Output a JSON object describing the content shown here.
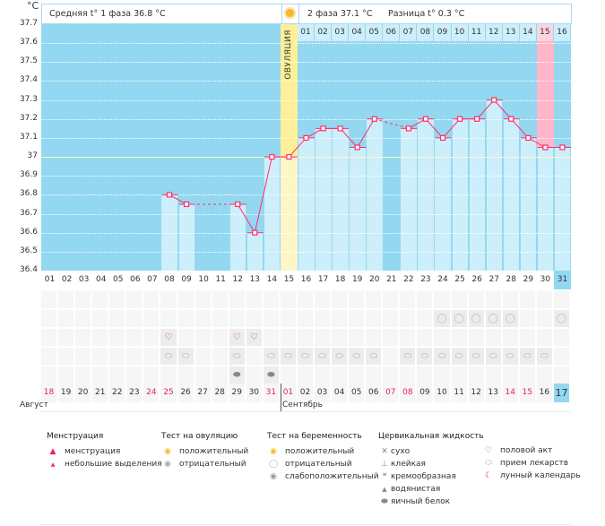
{
  "unit": "°C",
  "header": {
    "phase1": "Средняя t° 1 фаза 36.8 °C",
    "phase2": "2 фаза 37.1 °C",
    "diff": "Разница t° 0.3 °C"
  },
  "ovulation_label": "ОВУЛЯЦИЯ",
  "colors": {
    "plot_bg": "#93d8f0",
    "bar": "#cdeefb",
    "line": "#ff2d6a",
    "ovulation": "#fdf09a",
    "expected_period": "#ffb6c9",
    "weekend": "#e5245a"
  },
  "chart_data": {
    "type": "line",
    "ylim": [
      36.4,
      37.7
    ],
    "y_ticks": [
      "37.7",
      "37.6",
      "37.5",
      "37.4",
      "37.3",
      "37.2",
      "37.1",
      "37",
      "36.9",
      "36.8",
      "36.7",
      "36.6",
      "36.5",
      "36.4"
    ],
    "cycle_days": [
      "01",
      "02",
      "03",
      "04",
      "05",
      "06",
      "07",
      "08",
      "09",
      "10",
      "11",
      "12",
      "13",
      "14",
      "15",
      "16",
      "17",
      "18",
      "19",
      "20",
      "21",
      "22",
      "23",
      "24",
      "25",
      "26",
      "27",
      "28",
      "29",
      "30",
      "31"
    ],
    "temperatures": [
      null,
      null,
      null,
      null,
      null,
      null,
      null,
      36.8,
      36.75,
      null,
      null,
      36.75,
      36.6,
      37.0,
      37.0,
      37.1,
      37.15,
      37.15,
      37.05,
      37.2,
      null,
      37.15,
      37.2,
      37.1,
      37.2,
      37.2,
      37.3,
      37.2,
      37.1,
      37.05,
      37.05
    ],
    "coverline": 37.0,
    "ovulation_day": "15",
    "phase2_days": [
      "01",
      "02",
      "03",
      "04",
      "05",
      "06",
      "07",
      "08",
      "09",
      "10",
      "11",
      "12",
      "13",
      "14",
      "15",
      "16"
    ],
    "highlighted_phase2_day": "15",
    "current_cycle_day": "31"
  },
  "rows": {
    "pregnancy_test_negative": [
      "24",
      "25",
      "26",
      "27",
      "28",
      "31"
    ],
    "intercourse": [
      "08",
      "12",
      "13"
    ],
    "medication": [
      "08",
      "09",
      "12",
      "14",
      "15",
      "16",
      "17",
      "18",
      "19",
      "20",
      "22",
      "23",
      "24",
      "25",
      "26",
      "27",
      "28",
      "29",
      "30"
    ],
    "egg_white": [
      "12",
      "14"
    ]
  },
  "dates": [
    "18",
    "19",
    "20",
    "21",
    "22",
    "23",
    "24",
    "25",
    "26",
    "27",
    "28",
    "29",
    "30",
    "31",
    "01",
    "02",
    "03",
    "04",
    "05",
    "06",
    "07",
    "08",
    "09",
    "10",
    "11",
    "12",
    "13",
    "14",
    "15",
    "16",
    "17"
  ],
  "red_dates": [
    0,
    6,
    7,
    13,
    14,
    20,
    21,
    27,
    28
  ],
  "months": {
    "first": "Август",
    "second": "Сентябрь"
  },
  "legend": {
    "menstruation": {
      "title": "Менструация",
      "items": [
        "менструация",
        "небольшие выделения"
      ]
    },
    "ovulation_test": {
      "title": "Тест на овуляцию",
      "items": [
        "положительный",
        "отрицательный"
      ]
    },
    "pregnancy_test": {
      "title": "Тест на беременность",
      "items": [
        "положительный",
        "отрицательный",
        "слабоположительный"
      ]
    },
    "cervical_fluid": {
      "title": "Цервикальная жидкость",
      "items": [
        "сухо",
        "клейкая",
        "кремообразная",
        "водянистая",
        "яичный белок"
      ]
    },
    "other": {
      "items": [
        "половой акт",
        "прием лекарств",
        "лунный календарь"
      ]
    }
  }
}
